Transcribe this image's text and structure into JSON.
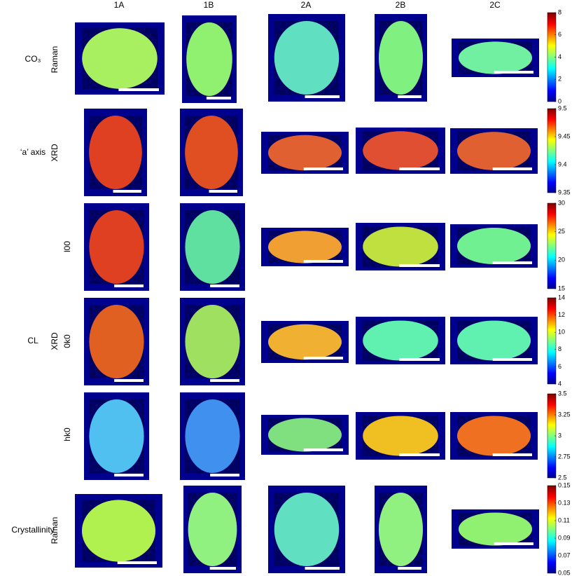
{
  "columns": [
    "1A",
    "1B",
    "2A",
    "2B",
    "2C"
  ],
  "rows": [
    {
      "group": "CO₃",
      "method": "Raman",
      "colorbar_ticks": [
        0,
        2,
        4,
        6,
        8
      ]
    },
    {
      "group": "‘a’ axis",
      "method": "XRD",
      "colorbar_ticks": [
        9.35,
        9.4,
        9.45,
        9.5
      ]
    },
    {
      "sub": "l00",
      "colorbar_ticks": [
        15,
        20,
        25,
        30
      ]
    },
    {
      "group": "CL",
      "method": "XRD",
      "sub": "0k0",
      "colorbar_ticks": [
        4,
        6,
        8,
        10,
        12,
        14
      ]
    },
    {
      "sub": "hk0",
      "colorbar_ticks": [
        2.5,
        2.75,
        3,
        3.25,
        3.5
      ]
    },
    {
      "group": "Crystallinity",
      "method": "Raman",
      "colorbar_ticks": [
        0.05,
        0.07,
        0.09,
        0.11,
        0.13,
        0.15
      ]
    }
  ]
}
